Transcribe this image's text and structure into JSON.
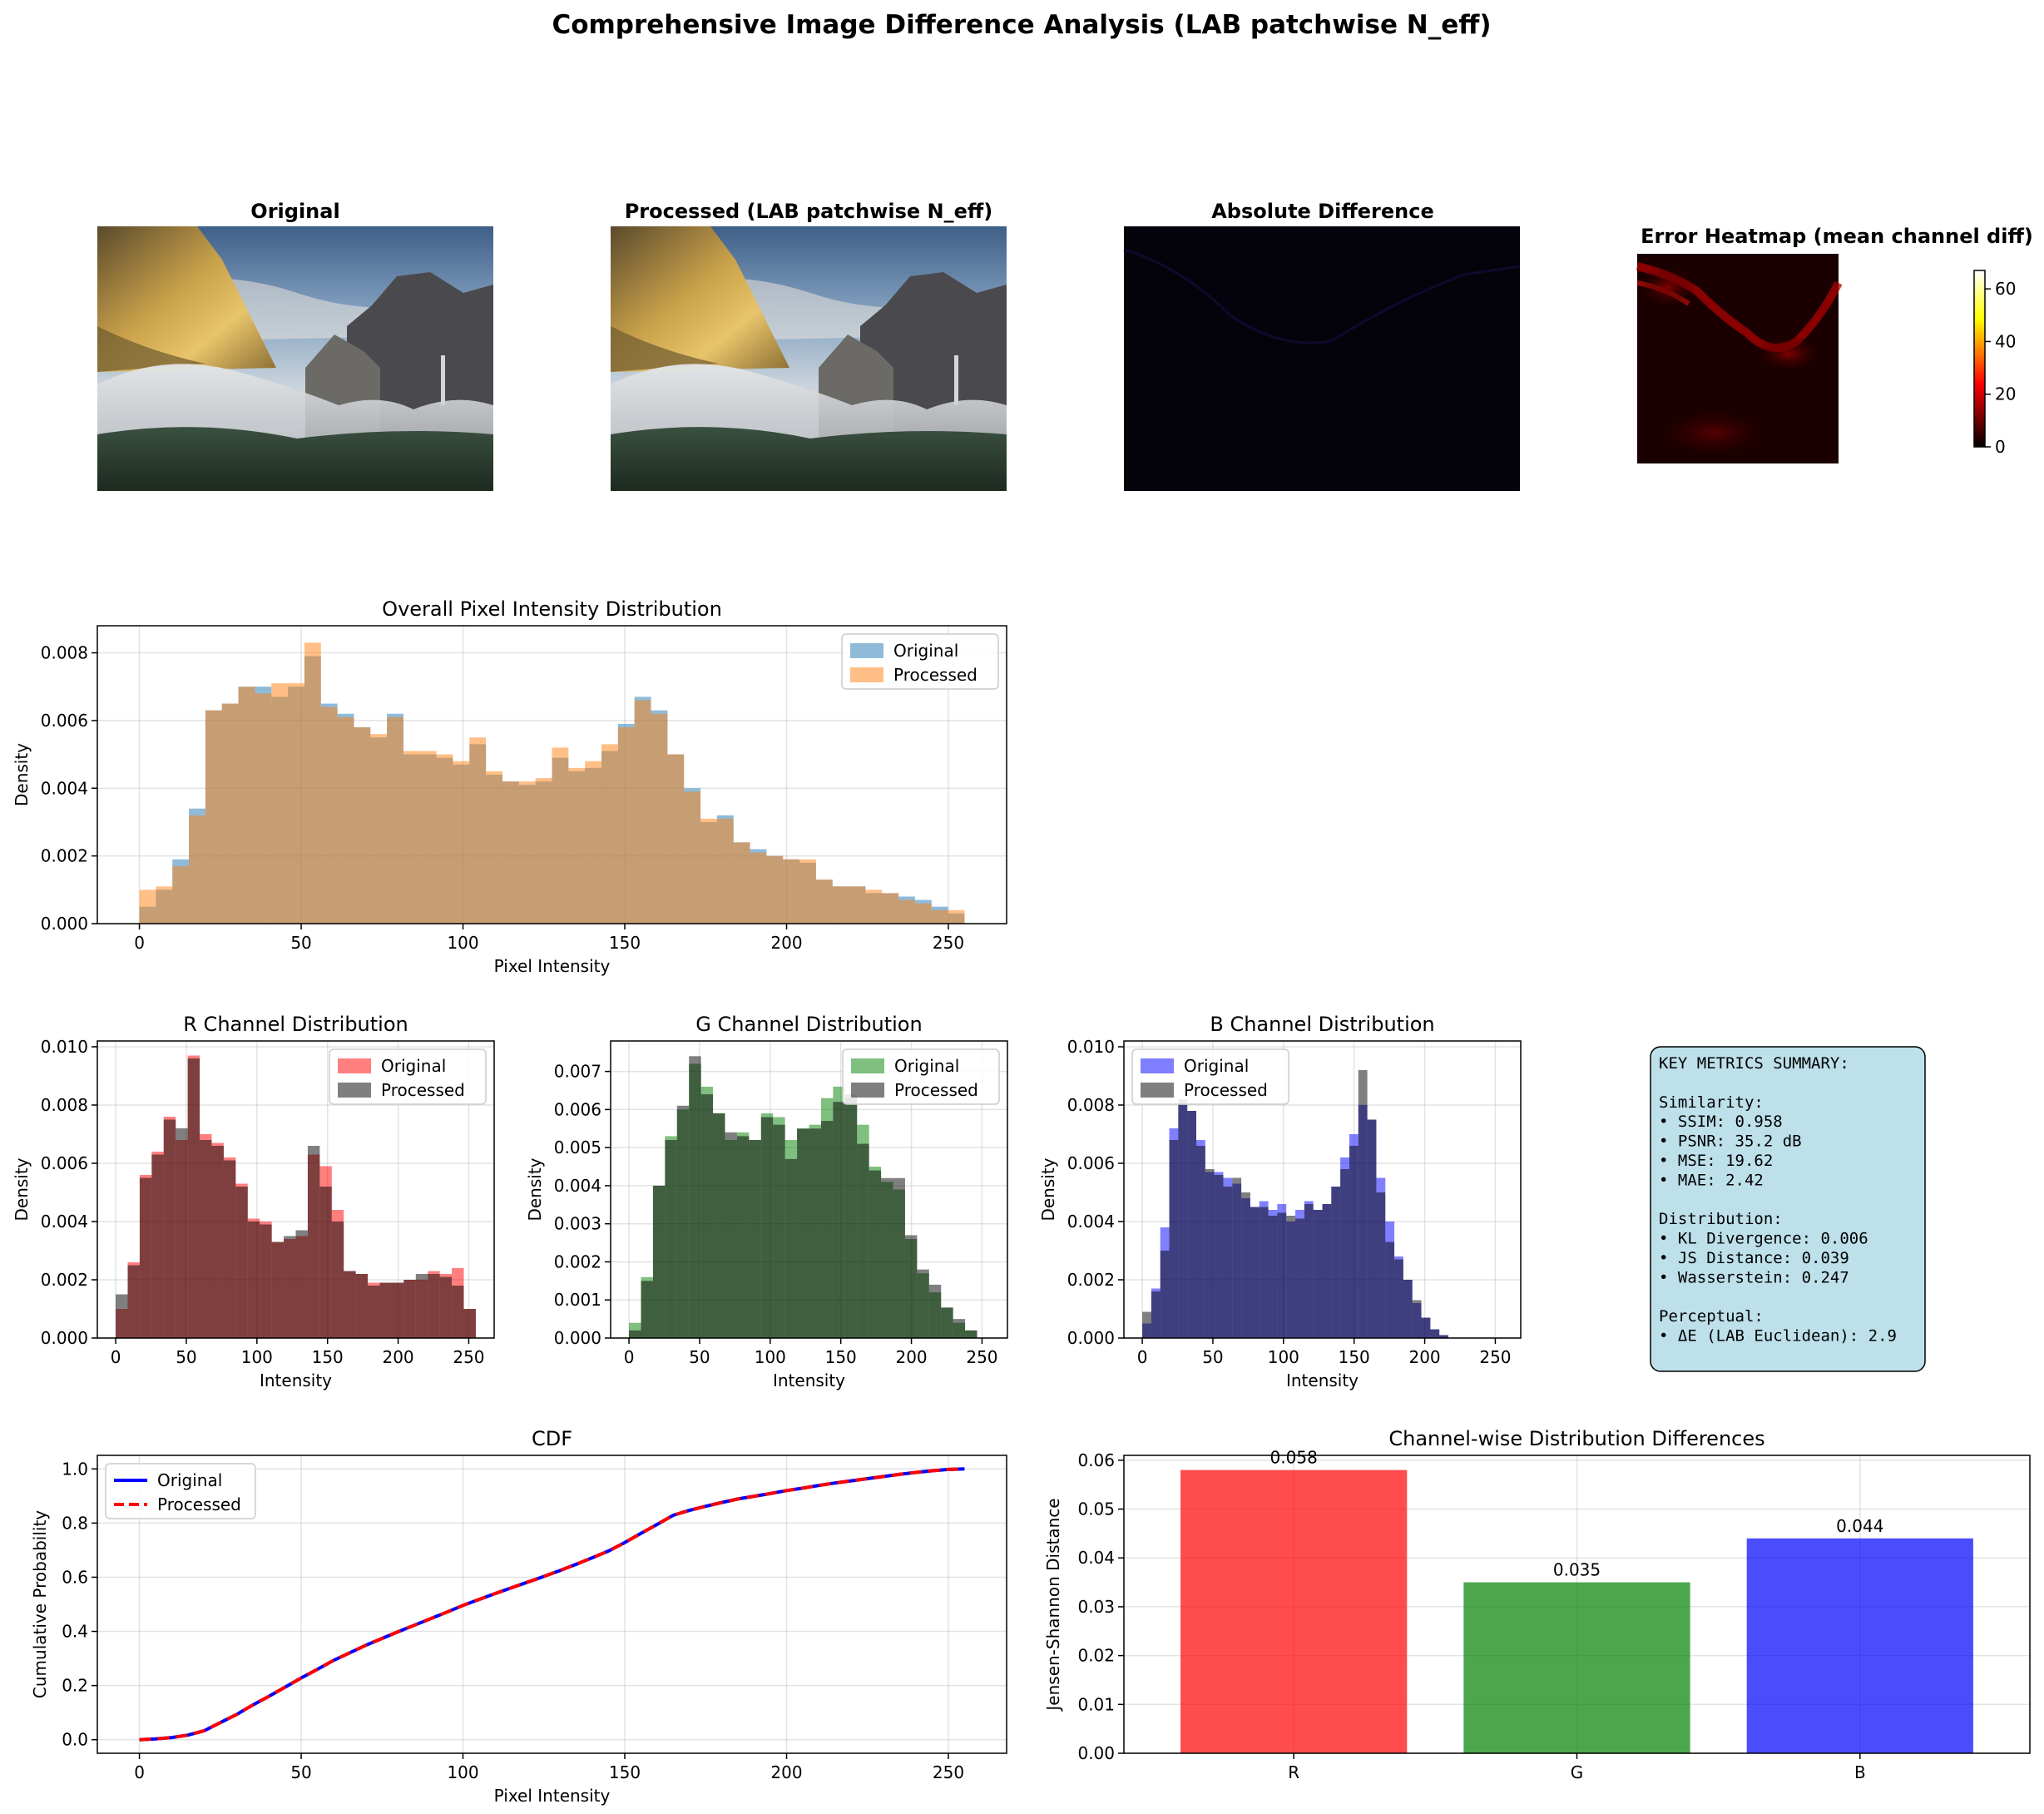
{
  "figure": {
    "title": "Comprehensive Image Difference Analysis (LAB patchwise N_eff)"
  },
  "images": {
    "original_title": "Original",
    "processed_title": "Processed (LAB patchwise N_eff)",
    "difference_title": "Absolute Difference",
    "heatmap_title": "Error Heatmap (mean channel diff)",
    "colorbar_ticks": [
      "0",
      "20",
      "40",
      "60"
    ]
  },
  "metrics": {
    "header": "KEY METRICS SUMMARY:",
    "similarity_label": "Similarity:",
    "similarity": [
      "• SSIM: 0.958",
      "• PSNR: 35.2 dB",
      "• MSE: 19.62",
      "• MAE: 2.42"
    ],
    "distribution_label": "Distribution:",
    "distribution": [
      "• KL Divergence: 0.006",
      "• JS Distance: 0.039",
      "• Wasserstein: 0.247"
    ],
    "perceptual_label": "Perceptual:",
    "perceptual": [
      "• ΔE (LAB Euclidean): 2.9"
    ]
  },
  "colors": {
    "hist_original": "#1f77b4",
    "hist_processed": "#ff7f0e",
    "red": "#ff0000",
    "green": "#008000",
    "blue": "#0000ff",
    "gray": "#000000",
    "bar_r": "#ff0000",
    "bar_g": "#008000",
    "bar_b": "#0000ff",
    "metrics_box": "#add8e6"
  },
  "chart_data": [
    {
      "id": "overall",
      "type": "bar",
      "title": "Overall Pixel Intensity Distribution",
      "xlabel": "Pixel Intensity",
      "ylabel": "Density",
      "xlim": [
        -13,
        268
      ],
      "ylim": [
        0,
        0.0088
      ],
      "xticks": [
        0,
        50,
        100,
        150,
        200,
        250
      ],
      "yticks": [
        0,
        0.002,
        0.004,
        0.006,
        0.008
      ],
      "ytick_labels": [
        "0.000",
        "0.002",
        "0.004",
        "0.006",
        "0.008"
      ],
      "legend": "top-right",
      "bin_start": 0,
      "bin_width": 5.1,
      "series": [
        {
          "name": "Original",
          "color": "#1f77b4",
          "alpha": 0.5,
          "values": [
            0.0005,
            0.001,
            0.0019,
            0.0034,
            0.0063,
            0.0065,
            0.007,
            0.007,
            0.0067,
            0.007,
            0.0079,
            0.0065,
            0.0062,
            0.0058,
            0.0055,
            0.0062,
            0.005,
            0.005,
            0.0049,
            0.0047,
            0.0053,
            0.0044,
            0.0042,
            0.0041,
            0.0042,
            0.0049,
            0.0045,
            0.0046,
            0.0051,
            0.0059,
            0.0067,
            0.0063,
            0.005,
            0.004,
            0.003,
            0.0032,
            0.0024,
            0.0022,
            0.002,
            0.0019,
            0.0018,
            0.0013,
            0.0011,
            0.0011,
            0.0009,
            0.0009,
            0.0008,
            0.0007,
            0.0005,
            0.0003
          ]
        },
        {
          "name": "Processed",
          "color": "#ff7f0e",
          "alpha": 0.5,
          "values": [
            0.001,
            0.0011,
            0.0017,
            0.0032,
            0.0063,
            0.0065,
            0.007,
            0.0068,
            0.0071,
            0.0071,
            0.0083,
            0.0064,
            0.0061,
            0.0058,
            0.0056,
            0.0061,
            0.0051,
            0.0051,
            0.005,
            0.0048,
            0.0055,
            0.0045,
            0.0042,
            0.0042,
            0.0043,
            0.0052,
            0.0046,
            0.0048,
            0.0053,
            0.0058,
            0.0066,
            0.0062,
            0.005,
            0.0039,
            0.0031,
            0.0031,
            0.0024,
            0.0021,
            0.002,
            0.0019,
            0.0019,
            0.0013,
            0.0011,
            0.0011,
            0.001,
            0.0009,
            0.0007,
            0.0006,
            0.0004,
            0.0004
          ]
        }
      ]
    },
    {
      "id": "r",
      "type": "bar",
      "title": "R Channel Distribution",
      "xlabel": "Intensity",
      "ylabel": "Density",
      "xlim": [
        -13,
        268
      ],
      "ylim": [
        0,
        0.0102
      ],
      "xticks": [
        0,
        50,
        100,
        150,
        200,
        250
      ],
      "yticks": [
        0,
        0.002,
        0.004,
        0.006,
        0.008,
        0.01
      ],
      "ytick_labels": [
        "0.000",
        "0.002",
        "0.004",
        "0.006",
        "0.008",
        "0.010"
      ],
      "legend": "top-right",
      "bin_start": 0,
      "bin_width": 8.5,
      "series": [
        {
          "name": "Original",
          "color": "#ff0000",
          "alpha": 0.5,
          "values": [
            0.001,
            0.0026,
            0.0056,
            0.0064,
            0.0076,
            0.0068,
            0.0097,
            0.007,
            0.0067,
            0.0062,
            0.0053,
            0.0041,
            0.004,
            0.0033,
            0.0034,
            0.0035,
            0.0063,
            0.0059,
            0.0044,
            0.0023,
            0.0022,
            0.0019,
            0.0019,
            0.0019,
            0.002,
            0.002,
            0.0023,
            0.0022,
            0.0024,
            0.001
          ]
        },
        {
          "name": "Processed",
          "color": "#000000",
          "alpha": 0.5,
          "values": [
            0.0015,
            0.0025,
            0.0055,
            0.0063,
            0.0075,
            0.0072,
            0.0096,
            0.0068,
            0.0066,
            0.0061,
            0.0052,
            0.004,
            0.0039,
            0.0033,
            0.0035,
            0.0037,
            0.0066,
            0.0052,
            0.004,
            0.0023,
            0.0022,
            0.0018,
            0.0019,
            0.0019,
            0.002,
            0.0022,
            0.0022,
            0.0021,
            0.0018,
            0.001
          ]
        }
      ]
    },
    {
      "id": "g",
      "type": "bar",
      "title": "G Channel Distribution",
      "xlabel": "Intensity",
      "ylabel": "Density",
      "xlim": [
        -13,
        268
      ],
      "ylim": [
        0,
        0.0078
      ],
      "xticks": [
        0,
        50,
        100,
        150,
        200,
        250
      ],
      "yticks": [
        0,
        0.001,
        0.002,
        0.003,
        0.004,
        0.005,
        0.006,
        0.007
      ],
      "ytick_labels": [
        "0.000",
        "0.001",
        "0.002",
        "0.003",
        "0.004",
        "0.005",
        "0.006",
        "0.007"
      ],
      "legend": "top-right",
      "bin_start": 0,
      "bin_width": 8.5,
      "series": [
        {
          "name": "Original",
          "color": "#008000",
          "alpha": 0.5,
          "values": [
            0.0004,
            0.0016,
            0.004,
            0.0053,
            0.006,
            0.0072,
            0.0066,
            0.0059,
            0.0052,
            0.0054,
            0.0052,
            0.0059,
            0.0058,
            0.0052,
            0.0055,
            0.0056,
            0.0063,
            0.0066,
            0.0063,
            0.0056,
            0.0045,
            0.0041,
            0.0039,
            0.0026,
            0.0017,
            0.0012,
            0.0008,
            0.0004,
            0.0002,
            0.0
          ]
        },
        {
          "name": "Processed",
          "color": "#000000",
          "alpha": 0.5,
          "values": [
            0.0002,
            0.0015,
            0.004,
            0.0052,
            0.0061,
            0.0074,
            0.0064,
            0.0059,
            0.0054,
            0.0053,
            0.0052,
            0.0058,
            0.0056,
            0.0047,
            0.0055,
            0.0055,
            0.0057,
            0.0062,
            0.0064,
            0.0051,
            0.0044,
            0.0042,
            0.0042,
            0.0027,
            0.0018,
            0.0014,
            0.0008,
            0.0005,
            0.0002,
            0.0
          ]
        }
      ]
    },
    {
      "id": "b",
      "type": "bar",
      "title": "B Channel Distribution",
      "xlabel": "Intensity",
      "ylabel": "Density",
      "xlim": [
        -13,
        268
      ],
      "ylim": [
        0,
        0.0102
      ],
      "xticks": [
        0,
        50,
        100,
        150,
        200,
        250
      ],
      "yticks": [
        0,
        0.002,
        0.004,
        0.006,
        0.008,
        0.01
      ],
      "ytick_labels": [
        "0.000",
        "0.002",
        "0.004",
        "0.006",
        "0.008",
        "0.010"
      ],
      "legend": "top-left",
      "bin_start": 0,
      "bin_width": 6.375,
      "series": [
        {
          "name": "Original",
          "color": "#0000ff",
          "alpha": 0.5,
          "values": [
            0.0005,
            0.0017,
            0.0038,
            0.0072,
            0.008,
            0.0078,
            0.0068,
            0.0057,
            0.0057,
            0.0055,
            0.0053,
            0.0048,
            0.0045,
            0.0047,
            0.0044,
            0.0046,
            0.004,
            0.0044,
            0.0047,
            0.0044,
            0.0046,
            0.0052,
            0.0062,
            0.007,
            0.008,
            0.0075,
            0.0055,
            0.004,
            0.0028,
            0.002,
            0.0012,
            0.0007,
            0.0003,
            0.0001,
            0.0,
            0.0,
            0.0,
            0.0,
            0.0,
            0.0
          ]
        },
        {
          "name": "Processed",
          "color": "#000000",
          "alpha": 0.5,
          "values": [
            0.0009,
            0.0016,
            0.003,
            0.0068,
            0.0082,
            0.0078,
            0.0066,
            0.0058,
            0.0056,
            0.0052,
            0.0055,
            0.005,
            0.0045,
            0.0045,
            0.0042,
            0.0043,
            0.0042,
            0.0041,
            0.0046,
            0.0044,
            0.0046,
            0.0052,
            0.0058,
            0.0066,
            0.0092,
            0.0075,
            0.005,
            0.0033,
            0.0027,
            0.002,
            0.0013,
            0.0007,
            0.0003,
            0.0001,
            0.0,
            0.0,
            0.0,
            0.0,
            0.0,
            0.0
          ]
        }
      ]
    },
    {
      "id": "cdf",
      "type": "line",
      "title": "CDF",
      "xlabel": "Pixel Intensity",
      "ylabel": "Cumulative Probability",
      "xlim": [
        -13,
        268
      ],
      "ylim": [
        -0.05,
        1.05
      ],
      "xticks": [
        0,
        50,
        100,
        150,
        200,
        250
      ],
      "yticks": [
        0,
        0.2,
        0.4,
        0.6,
        0.8,
        1.0
      ],
      "ytick_labels": [
        "0.0",
        "0.2",
        "0.4",
        "0.6",
        "0.8",
        "1.0"
      ],
      "legend": "top-left",
      "x": [
        0,
        5,
        10,
        15,
        20,
        25,
        30,
        35,
        40,
        45,
        50,
        55,
        60,
        65,
        70,
        75,
        80,
        85,
        90,
        95,
        100,
        105,
        110,
        115,
        120,
        125,
        130,
        135,
        140,
        145,
        150,
        155,
        160,
        165,
        170,
        175,
        180,
        185,
        190,
        195,
        200,
        205,
        210,
        215,
        220,
        225,
        230,
        235,
        240,
        245,
        250,
        255
      ],
      "series": [
        {
          "name": "Original",
          "color": "#0000ff",
          "dash": false,
          "values": [
            0.0,
            0.003,
            0.008,
            0.017,
            0.033,
            0.063,
            0.093,
            0.128,
            0.16,
            0.194,
            0.228,
            0.26,
            0.293,
            0.321,
            0.349,
            0.374,
            0.399,
            0.423,
            0.447,
            0.471,
            0.496,
            0.518,
            0.54,
            0.561,
            0.582,
            0.603,
            0.625,
            0.648,
            0.672,
            0.697,
            0.728,
            0.762,
            0.795,
            0.829,
            0.847,
            0.862,
            0.876,
            0.889,
            0.899,
            0.909,
            0.92,
            0.929,
            0.939,
            0.948,
            0.956,
            0.964,
            0.972,
            0.98,
            0.987,
            0.993,
            0.998,
            1.0
          ]
        },
        {
          "name": "Processed",
          "color": "#ff0000",
          "dash": true,
          "values": [
            0.0,
            0.003,
            0.008,
            0.017,
            0.033,
            0.063,
            0.093,
            0.128,
            0.16,
            0.194,
            0.228,
            0.26,
            0.293,
            0.321,
            0.349,
            0.374,
            0.399,
            0.423,
            0.447,
            0.471,
            0.496,
            0.518,
            0.54,
            0.561,
            0.582,
            0.603,
            0.625,
            0.648,
            0.672,
            0.697,
            0.728,
            0.762,
            0.795,
            0.829,
            0.847,
            0.862,
            0.876,
            0.889,
            0.899,
            0.909,
            0.92,
            0.929,
            0.939,
            0.948,
            0.956,
            0.964,
            0.972,
            0.98,
            0.987,
            0.993,
            0.998,
            1.0
          ]
        }
      ]
    },
    {
      "id": "js",
      "type": "bar",
      "title": "Channel-wise Distribution Differences",
      "xlabel": "",
      "ylabel": "Jensen-Shannon Distance",
      "ylim": [
        0,
        0.061
      ],
      "yticks": [
        0,
        0.01,
        0.02,
        0.03,
        0.04,
        0.05,
        0.06
      ],
      "ytick_labels": [
        "0.00",
        "0.01",
        "0.02",
        "0.03",
        "0.04",
        "0.05",
        "0.06"
      ],
      "categories": [
        "R",
        "G",
        "B"
      ],
      "values": [
        0.058,
        0.035,
        0.044
      ],
      "value_labels": [
        "0.058",
        "0.035",
        "0.044"
      ],
      "colors": [
        "#ff0000",
        "#008000",
        "#0000ff"
      ]
    }
  ]
}
